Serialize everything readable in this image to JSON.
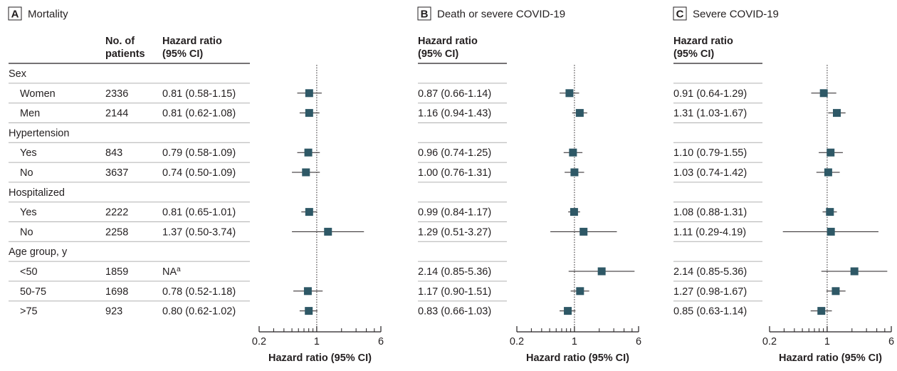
{
  "colors": {
    "marker": "#2e5866",
    "ci_line": "#231f20",
    "divider": "#b0b0b0",
    "rule": "#231f20"
  },
  "headers": {
    "no_of_patients_line1": "No. of",
    "no_of_patients_line2": "patients",
    "hazard_ratio_line1": "Hazard ratio",
    "hazard_ratio_line2": "(95% CI)"
  },
  "axis": {
    "xlabel": "Hazard ratio (95% CI)",
    "scale": "log",
    "xlim": [
      0.2,
      6
    ],
    "tick_labels": [
      "0.2",
      "1",
      "6"
    ],
    "reference_line": 1
  },
  "rows": [
    {
      "kind": "group",
      "label": "Sex"
    },
    {
      "kind": "item",
      "label": "Women",
      "n": "2336"
    },
    {
      "kind": "item",
      "label": "Men",
      "n": "2144"
    },
    {
      "kind": "group",
      "label": "Hypertension"
    },
    {
      "kind": "item",
      "label": "Yes",
      "n": "843"
    },
    {
      "kind": "item",
      "label": "No",
      "n": "3637"
    },
    {
      "kind": "group",
      "label": "Hospitalized"
    },
    {
      "kind": "item",
      "label": "Yes",
      "n": "2222"
    },
    {
      "kind": "item",
      "label": "No",
      "n": "2258"
    },
    {
      "kind": "group",
      "label": "Age group, y"
    },
    {
      "kind": "item",
      "label": "<50",
      "n": "1859"
    },
    {
      "kind": "item",
      "label": "50-75",
      "n": "1698"
    },
    {
      "kind": "item",
      "label": ">75",
      "n": "923"
    }
  ],
  "chart_data": [
    {
      "type": "forest",
      "panel_letter": "A",
      "title": "Mortality",
      "xlabel": "Hazard ratio (95% CI)",
      "xlim": [
        0.2,
        6
      ],
      "points": [
        {
          "row": "Women",
          "text": "0.81 (0.58-1.15)",
          "hr": 0.81,
          "lo": 0.58,
          "hi": 1.15
        },
        {
          "row": "Men",
          "text": "0.81 (0.62-1.08)",
          "hr": 0.81,
          "lo": 0.62,
          "hi": 1.08
        },
        {
          "row": "Yes",
          "text": "0.79 (0.58-1.09)",
          "hr": 0.79,
          "lo": 0.58,
          "hi": 1.09
        },
        {
          "row": "No",
          "text": "0.74 (0.50-1.09)",
          "hr": 0.74,
          "lo": 0.5,
          "hi": 1.09
        },
        {
          "row": "Yes",
          "text": "0.81 (0.65-1.01)",
          "hr": 0.81,
          "lo": 0.65,
          "hi": 1.01
        },
        {
          "row": "No",
          "text": "1.37 (0.50-3.74)",
          "hr": 1.37,
          "lo": 0.5,
          "hi": 3.74
        },
        {
          "row": "<50",
          "text": "NA",
          "superscript": "a",
          "hr": null,
          "lo": null,
          "hi": null
        },
        {
          "row": "50-75",
          "text": "0.78 (0.52-1.18)",
          "hr": 0.78,
          "lo": 0.52,
          "hi": 1.18
        },
        {
          "row": ">75",
          "text": "0.80 (0.62-1.02)",
          "hr": 0.8,
          "lo": 0.62,
          "hi": 1.02
        }
      ]
    },
    {
      "type": "forest",
      "panel_letter": "B",
      "title": "Death or severe COVID-19",
      "xlabel": "Hazard ratio (95% CI)",
      "xlim": [
        0.2,
        6
      ],
      "points": [
        {
          "row": "Women",
          "text": "0.87 (0.66-1.14)",
          "hr": 0.87,
          "lo": 0.66,
          "hi": 1.14
        },
        {
          "row": "Men",
          "text": "1.16 (0.94-1.43)",
          "hr": 1.16,
          "lo": 0.94,
          "hi": 1.43
        },
        {
          "row": "Yes",
          "text": "0.96 (0.74-1.25)",
          "hr": 0.96,
          "lo": 0.74,
          "hi": 1.25
        },
        {
          "row": "No",
          "text": "1.00 (0.76-1.31)",
          "hr": 1.0,
          "lo": 0.76,
          "hi": 1.31
        },
        {
          "row": "Yes",
          "text": "0.99 (0.84-1.17)",
          "hr": 0.99,
          "lo": 0.84,
          "hi": 1.17
        },
        {
          "row": "No",
          "text": "1.29 (0.51-3.27)",
          "hr": 1.29,
          "lo": 0.51,
          "hi": 3.27
        },
        {
          "row": "<50",
          "text": "2.14 (0.85-5.36)",
          "hr": 2.14,
          "lo": 0.85,
          "hi": 5.36
        },
        {
          "row": "50-75",
          "text": "1.17 (0.90-1.51)",
          "hr": 1.17,
          "lo": 0.9,
          "hi": 1.51
        },
        {
          "row": ">75",
          "text": "0.83 (0.66-1.03)",
          "hr": 0.83,
          "lo": 0.66,
          "hi": 1.03
        }
      ]
    },
    {
      "type": "forest",
      "panel_letter": "C",
      "title": "Severe COVID-19",
      "xlabel": "Hazard ratio (95% CI)",
      "xlim": [
        0.2,
        6
      ],
      "points": [
        {
          "row": "Women",
          "text": "0.91 (0.64-1.29)",
          "hr": 0.91,
          "lo": 0.64,
          "hi": 1.29
        },
        {
          "row": "Men",
          "text": "1.31 (1.03-1.67)",
          "hr": 1.31,
          "lo": 1.03,
          "hi": 1.67
        },
        {
          "row": "Yes",
          "text": "1.10 (0.79-1.55)",
          "hr": 1.1,
          "lo": 0.79,
          "hi": 1.55
        },
        {
          "row": "No",
          "text": "1.03 (0.74-1.42)",
          "hr": 1.03,
          "lo": 0.74,
          "hi": 1.42
        },
        {
          "row": "Yes",
          "text": "1.08 (0.88-1.31)",
          "hr": 1.08,
          "lo": 0.88,
          "hi": 1.31
        },
        {
          "row": "No",
          "text": "1.11 (0.29-4.19)",
          "hr": 1.11,
          "lo": 0.29,
          "hi": 4.19
        },
        {
          "row": "<50",
          "text": "2.14 (0.85-5.36)",
          "hr": 2.14,
          "lo": 0.85,
          "hi": 5.36
        },
        {
          "row": "50-75",
          "text": "1.27 (0.98-1.67)",
          "hr": 1.27,
          "lo": 0.98,
          "hi": 1.67
        },
        {
          "row": ">75",
          "text": "0.85 (0.63-1.14)",
          "hr": 0.85,
          "lo": 0.63,
          "hi": 1.14
        }
      ]
    }
  ]
}
